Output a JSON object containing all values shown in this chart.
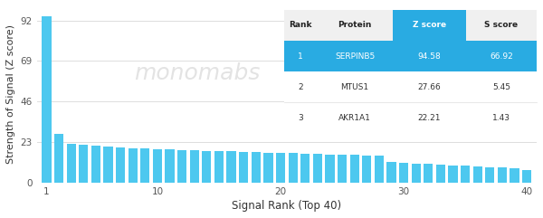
{
  "bar_values": [
    94.58,
    27.66,
    22.21,
    21.5,
    20.8,
    20.3,
    19.9,
    19.6,
    19.4,
    19.1,
    18.8,
    18.6,
    18.4,
    18.2,
    18.0,
    17.8,
    17.6,
    17.4,
    17.1,
    16.9,
    16.7,
    16.5,
    16.3,
    16.1,
    15.9,
    15.7,
    15.5,
    15.3,
    12.0,
    11.5,
    11.0,
    10.6,
    10.2,
    9.8,
    9.5,
    9.2,
    8.9,
    8.6,
    8.3,
    7.0
  ],
  "bar_color": "#4DC8EF",
  "bg_color": "#FFFFFF",
  "grid_color": "#DDDDDD",
  "ylabel": "Strength of Signal (Z score)",
  "xlabel": "Signal Rank (Top 40)",
  "yticks": [
    0,
    23,
    46,
    69,
    92
  ],
  "xticks": [
    1,
    10,
    20,
    30,
    40
  ],
  "watermark": "monomabs",
  "table": {
    "headers": [
      "Rank",
      "Protein",
      "Z score",
      "S score"
    ],
    "rows": [
      [
        "1",
        "SERPINB5",
        "94.58",
        "66.92"
      ],
      [
        "2",
        "MTUS1",
        "27.66",
        "5.45"
      ],
      [
        "3",
        "AKR1A1",
        "22.21",
        "1.43"
      ]
    ],
    "header_color": "#FFFFFF",
    "highlight_row_color": "#29ABE2",
    "highlight_text_color": "#FFFFFF",
    "normal_text_color": "#333333",
    "header_bg": "#F0F0F0",
    "header_text": "#222222",
    "zscore_header_bg": "#29ABE2",
    "separator_color": "#DDDDDD"
  }
}
